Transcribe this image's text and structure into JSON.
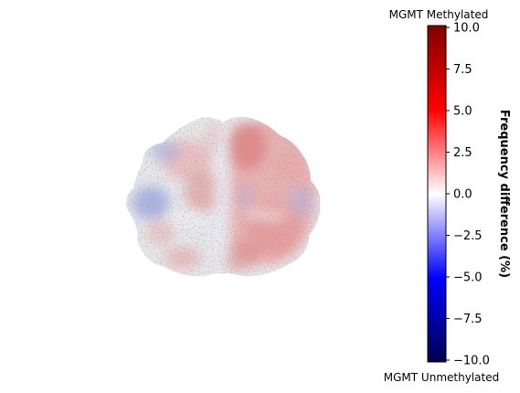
{
  "chart_data": {
    "type": "heatmap",
    "title": "",
    "colorbar": {
      "label": "Frequency difference (%)",
      "top_annotation": "MGMT Methylated",
      "bottom_annotation": "MGMT Unmethylated",
      "vmin": -10,
      "vmax": 10,
      "ticks": [
        10,
        7.5,
        5,
        2.5,
        0,
        -2.5,
        -5,
        -7.5,
        -10
      ],
      "tick_labels": [
        "10.0",
        "7.5",
        "5.0",
        "2.5",
        "0.0",
        "−2.5",
        "−5.0",
        "−7.5",
        "−10.0"
      ],
      "colormap": "seismic",
      "colors": [
        "#00004c",
        "#0000ff",
        "#ffffff",
        "#ff0000",
        "#7f0000"
      ]
    },
    "image": {
      "content": "axial brain slice, frequency difference map overlaid on grey anatomy",
      "axes_visible": false,
      "left_hemisphere_bias": "mixed, light blue to light red",
      "right_hemisphere_bias": "predominantly light red"
    }
  }
}
